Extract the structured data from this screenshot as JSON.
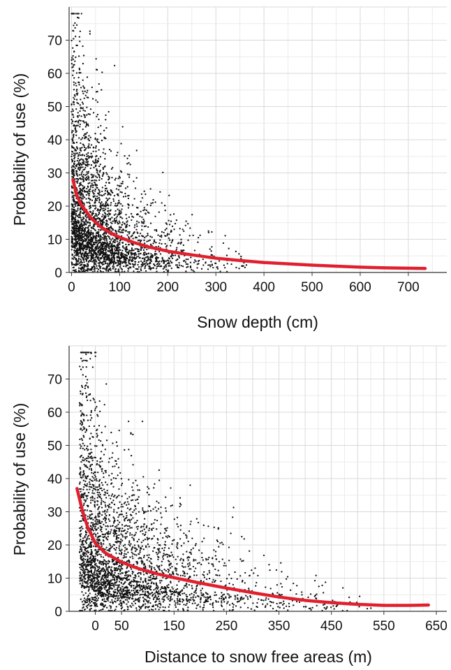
{
  "chart_data": [
    {
      "type": "scatter",
      "xlabel": "Snow depth (cm)",
      "ylabel": "Probability of use (%)",
      "xlim": [
        -5,
        780
      ],
      "ylim": [
        0,
        80
      ],
      "xticks": [
        0,
        100,
        200,
        300,
        400,
        500,
        600,
        700
      ],
      "yticks": [
        0,
        10,
        20,
        30,
        40,
        50,
        60,
        70
      ],
      "grid": true,
      "point_color": "#111111",
      "point_count": 3000,
      "point_distribution": {
        "x_peak": 0,
        "y_max": 78,
        "note_free": true
      },
      "fit_curve": {
        "color": "#e0202e",
        "points": [
          [
            3,
            28
          ],
          [
            10,
            23.5
          ],
          [
            20,
            20.5
          ],
          [
            40,
            16.5
          ],
          [
            60,
            13.8
          ],
          [
            80,
            12.0
          ],
          [
            100,
            10.6
          ],
          [
            130,
            9.0
          ],
          [
            160,
            7.7
          ],
          [
            200,
            6.4
          ],
          [
            250,
            5.3
          ],
          [
            300,
            4.3
          ],
          [
            350,
            3.6
          ],
          [
            400,
            3.0
          ],
          [
            450,
            2.6
          ],
          [
            500,
            2.2
          ],
          [
            550,
            1.9
          ],
          [
            600,
            1.6
          ],
          [
            650,
            1.4
          ],
          [
            700,
            1.3
          ],
          [
            735,
            1.2
          ]
        ]
      }
    },
    {
      "type": "scatter",
      "xlabel": "Distance to snow free areas (m)",
      "ylabel": "Probability of use (%)",
      "xlim": [
        -50,
        670
      ],
      "ylim": [
        0,
        80
      ],
      "xticks": [
        0,
        50,
        150,
        250,
        350,
        450,
        550,
        650
      ],
      "yticks": [
        0,
        10,
        20,
        30,
        40,
        50,
        60,
        70
      ],
      "grid": true,
      "point_color": "#111111",
      "point_count": 3000,
      "fit_curve": {
        "color": "#e0202e",
        "points": [
          [
            -35,
            37
          ],
          [
            -25,
            30.5
          ],
          [
            -15,
            25.5
          ],
          [
            0,
            20.5
          ],
          [
            20,
            17.5
          ],
          [
            50,
            14.8
          ],
          [
            80,
            13.0
          ],
          [
            120,
            11.2
          ],
          [
            160,
            9.8
          ],
          [
            200,
            8.5
          ],
          [
            250,
            7.0
          ],
          [
            300,
            5.6
          ],
          [
            350,
            4.3
          ],
          [
            400,
            3.3
          ],
          [
            450,
            2.6
          ],
          [
            500,
            2.1
          ],
          [
            550,
            1.8
          ],
          [
            600,
            1.8
          ],
          [
            635,
            1.9
          ]
        ]
      }
    }
  ]
}
